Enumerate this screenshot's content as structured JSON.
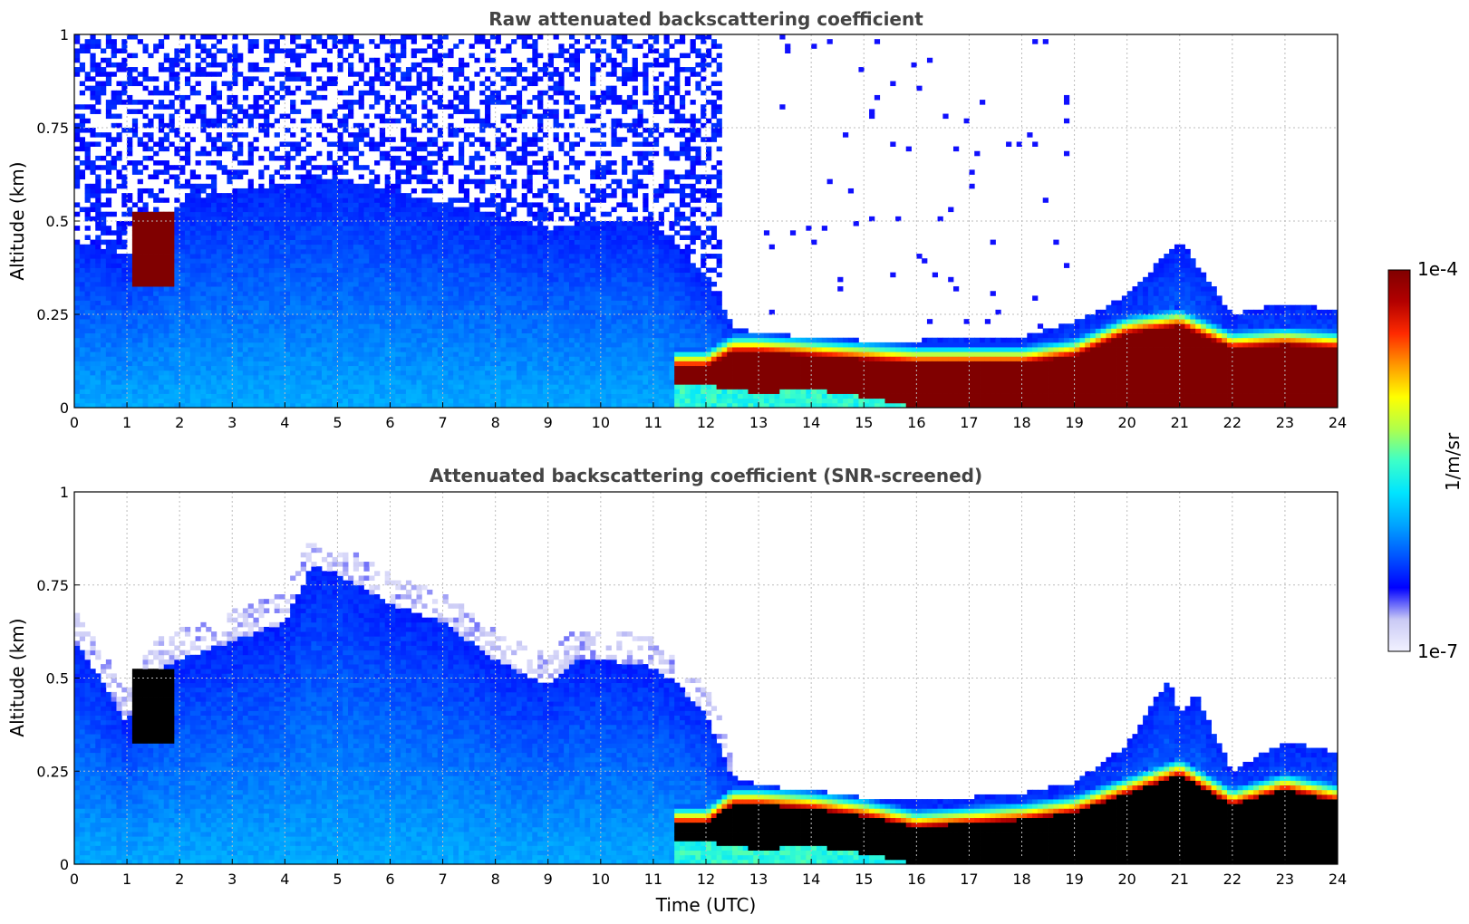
{
  "colors": {
    "colormap": [
      "#f2f2ff",
      "#c9c9f5",
      "#0000ff",
      "#0055ff",
      "#00a5ff",
      "#00e5ff",
      "#3dffc8",
      "#b0ff4b",
      "#ffff00",
      "#ff9900",
      "#ff2a00",
      "#b30000",
      "#800000"
    ],
    "saturated_screened": "#000000",
    "title_color": "#444444",
    "grid_color": "#bdbdbd"
  },
  "colorbar": {
    "max_label": "1e-4",
    "min_label": "1e-7",
    "unit_label": "1/m/sr",
    "scale": "log",
    "min_value": 1e-07,
    "max_value": 0.0001
  },
  "chart_data": [
    {
      "type": "heatmap",
      "title": "Raw attenuated backscattering coefficient",
      "xlabel": "",
      "ylabel": "Altitude (km)",
      "xlim": [
        0,
        24
      ],
      "ylim": [
        0,
        1
      ],
      "x_ticks": [
        "0",
        "1",
        "2",
        "3",
        "4",
        "5",
        "6",
        "7",
        "8",
        "9",
        "10",
        "11",
        "12",
        "13",
        "14",
        "15",
        "16",
        "17",
        "18",
        "19",
        "20",
        "21",
        "22",
        "23",
        "24"
      ],
      "y_ticks": [
        "0",
        "0.25",
        "0.5",
        "0.75",
        "1"
      ],
      "grid": true,
      "screened": false,
      "boundary_layer_top_km": {
        "time_utc": [
          0,
          1,
          2,
          3,
          4,
          5,
          6,
          7,
          8,
          9,
          10,
          11,
          12,
          12.5,
          13,
          14,
          15,
          16,
          17,
          18,
          19,
          20,
          21,
          22,
          23,
          24
        ],
        "altitude_km": [
          0.45,
          0.4,
          0.55,
          0.58,
          0.6,
          0.62,
          0.58,
          0.55,
          0.52,
          0.48,
          0.5,
          0.5,
          0.35,
          0.22,
          0.2,
          0.19,
          0.18,
          0.18,
          0.19,
          0.19,
          0.23,
          0.3,
          0.45,
          0.25,
          0.28,
          0.26
        ]
      },
      "noise_region": {
        "time_start_utc": 0,
        "time_end_utc": 12.3,
        "altitude_km": [
          0.6,
          1.0
        ]
      },
      "cloud_layer": {
        "time_utc": [
          11.4,
          12,
          12.5,
          13,
          14,
          15,
          16,
          17,
          18,
          19,
          20,
          21,
          22,
          23,
          24
        ],
        "bottom_km": [
          0.06,
          0.06,
          0.05,
          0.04,
          0.05,
          0.03,
          0.0,
          0.0,
          0.0,
          0.0,
          0.0,
          0.0,
          0.0,
          0.0,
          0.0
        ],
        "top_km": [
          0.11,
          0.11,
          0.15,
          0.15,
          0.14,
          0.13,
          0.12,
          0.12,
          0.12,
          0.14,
          0.2,
          0.22,
          0.16,
          0.17,
          0.16
        ]
      },
      "aerosol_plume": {
        "time_start_utc": 1.1,
        "time_end_utc": 1.95,
        "altitude_km": [
          0.33,
          0.52
        ]
      }
    },
    {
      "type": "heatmap",
      "title": "Attenuated backscattering coefficient (SNR-screened)",
      "xlabel": "Time (UTC)",
      "ylabel": "Altitude (km)",
      "xlim": [
        0,
        24
      ],
      "ylim": [
        0,
        1
      ],
      "x_ticks": [
        "0",
        "1",
        "2",
        "3",
        "4",
        "5",
        "6",
        "7",
        "8",
        "9",
        "10",
        "11",
        "12",
        "13",
        "14",
        "15",
        "16",
        "17",
        "18",
        "19",
        "20",
        "21",
        "22",
        "23",
        "24"
      ],
      "y_ticks": [
        "0",
        "0.25",
        "0.5",
        "0.75",
        "1"
      ],
      "grid": true,
      "screened": true,
      "boundary_layer_top_km": {
        "time_utc": [
          0,
          0.5,
          1,
          1.5,
          2,
          3,
          4,
          4.5,
          5,
          6,
          7,
          8,
          9,
          9.5,
          10,
          11,
          11.5,
          12,
          12.5,
          13,
          14,
          15,
          16,
          17,
          18,
          19,
          20,
          20.8,
          21,
          21.3,
          22,
          23,
          24
        ],
        "altitude_km": [
          0.6,
          0.5,
          0.38,
          0.52,
          0.55,
          0.6,
          0.65,
          0.8,
          0.78,
          0.7,
          0.65,
          0.55,
          0.48,
          0.55,
          0.55,
          0.53,
          0.48,
          0.4,
          0.24,
          0.21,
          0.2,
          0.18,
          0.17,
          0.18,
          0.19,
          0.22,
          0.32,
          0.5,
          0.4,
          0.46,
          0.25,
          0.33,
          0.3
        ]
      },
      "cloud_layer": {
        "time_utc": [
          11.4,
          12,
          12.5,
          13,
          14,
          15,
          16,
          17,
          18,
          19,
          20,
          21,
          22,
          23,
          24
        ],
        "bottom_km": [
          0.06,
          0.06,
          0.05,
          0.04,
          0.05,
          0.03,
          0.0,
          0.0,
          0.0,
          0.0,
          0.0,
          0.0,
          0.0,
          0.0,
          0.0
        ],
        "top_km": [
          0.11,
          0.11,
          0.16,
          0.16,
          0.15,
          0.13,
          0.1,
          0.11,
          0.12,
          0.14,
          0.19,
          0.24,
          0.16,
          0.2,
          0.17
        ]
      },
      "aerosol_plume": {
        "time_start_utc": 1.1,
        "time_end_utc": 1.95,
        "altitude_km": [
          0.33,
          0.52
        ]
      }
    }
  ]
}
